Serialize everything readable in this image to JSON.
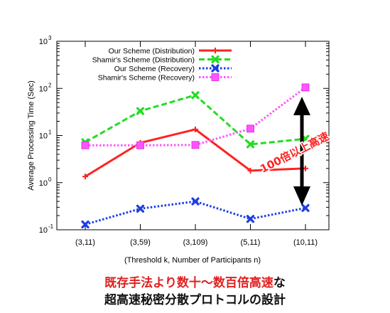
{
  "chart_data": {
    "type": "line",
    "yscale": "log",
    "ylim": [
      0.1,
      1000
    ],
    "xlabel": "(Threshold k, Number of Participants n)",
    "ylabel": "Average Processing Time (Sec)",
    "categories": [
      "(3,11)",
      "(3,59)",
      "(3,109)",
      "(5,11)",
      "(10,11)"
    ],
    "y_ticks": [
      {
        "value": 0.1,
        "base": "10",
        "exp": "-1"
      },
      {
        "value": 1,
        "base": "10",
        "exp": "0"
      },
      {
        "value": 10,
        "base": "10",
        "exp": "1"
      },
      {
        "value": 100,
        "base": "10",
        "exp": "2"
      },
      {
        "value": 1000,
        "base": "10",
        "exp": "3"
      }
    ],
    "grid": false,
    "legend_position": "top-left",
    "series": [
      {
        "name": "Our Scheme (Distribution)",
        "values": [
          1.35,
          7.0,
          13.5,
          1.8,
          2.0
        ],
        "color": "#ff2222",
        "dash": "solid",
        "marker": "plus"
      },
      {
        "name": "Shamir's Scheme (Distribution)",
        "values": [
          7.2,
          33.0,
          72.0,
          6.5,
          8.5
        ],
        "color": "#22dd22",
        "dash": "dashed",
        "marker": "x"
      },
      {
        "name": "Our Scheme (Recovery)",
        "values": [
          0.13,
          0.28,
          0.4,
          0.17,
          0.29
        ],
        "color": "#1a3ee6",
        "dash": "dotted",
        "marker": "x"
      },
      {
        "name": "Shamir's Scheme (Recovery)",
        "values": [
          6.2,
          6.2,
          6.3,
          14.0,
          105.0
        ],
        "color": "#ff55ff",
        "dash": "dotted",
        "marker": "square"
      }
    ],
    "annotation": {
      "text": "100倍以上高速",
      "color": "#ff2222"
    }
  },
  "caption": {
    "line1": "既存手法より数十～数百倍高速",
    "line1_suffix": "な",
    "line2": "超高速秘密分散プロトコルの設計"
  }
}
